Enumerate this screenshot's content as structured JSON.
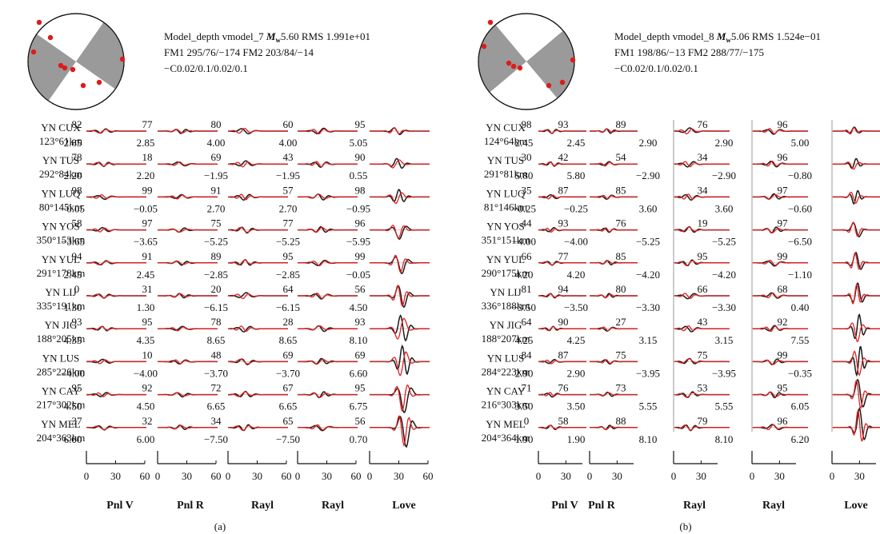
{
  "chart_data": [
    {
      "panel_label": "(a)",
      "type": "line",
      "header": {
        "line1": "Model_depth vmodel_7",
        "mag_symbol": "M",
        "mag_sub": "w",
        "line1b": "5.60 RMS 1.991e+01",
        "line2": "FM1 295/76/−174  FM2 203/84/−14",
        "line3": "−C0.02/0.1/0.02/0.1"
      },
      "components": [
        "Pnl V",
        "Pnl R",
        "Rayl",
        "Rayl",
        "Love"
      ],
      "x_ticks": [
        [
          "0",
          "30",
          "60"
        ],
        [
          "0",
          "30",
          "60"
        ],
        [
          "0",
          "30",
          "60"
        ],
        [
          "0",
          "30",
          "60"
        ],
        [
          "0",
          "30",
          "60"
        ]
      ],
      "stations": [
        {
          "name": "YN CUX",
          "dist": "123°61km",
          "cc": [
            "82",
            "77",
            "80",
            "60",
            "95"
          ],
          "shift": [
            "2.85",
            "2.85",
            "4.00",
            "4.00",
            "5.05"
          ]
        },
        {
          "name": "YN TUS",
          "dist": "292°84km",
          "cc": [
            "78",
            "18",
            "69",
            "43",
            "90"
          ],
          "shift": [
            "2.20",
            "2.20",
            "−1.95",
            "−1.95",
            "0.55"
          ]
        },
        {
          "name": "YN LUQ",
          "dist": "80°145km",
          "cc": [
            "98",
            "99",
            "91",
            "57",
            "98"
          ],
          "shift": [
            "−0.05",
            "−0.05",
            "2.70",
            "2.70",
            "−0.95"
          ]
        },
        {
          "name": "YN YOS",
          "dist": "350°153km",
          "cc": [
            "58",
            "97",
            "75",
            "77",
            "96"
          ],
          "shift": [
            "−3.65",
            "−3.65",
            "−5.25",
            "−5.25",
            "−5.95"
          ]
        },
        {
          "name": "YN YUL",
          "dist": "291°178km",
          "cc": [
            "94",
            "91",
            "89",
            "95",
            "99"
          ],
          "shift": [
            "2.45",
            "2.45",
            "−2.85",
            "−2.85",
            "−0.05"
          ]
        },
        {
          "name": "YN LIJ",
          "dist": "335°191km",
          "cc": [
            "0",
            "31",
            "20",
            "64",
            "56"
          ],
          "shift": [
            "1.30",
            "1.30",
            "−6.15",
            "−6.15",
            "4.50"
          ]
        },
        {
          "name": "YN JIG",
          "dist": "188°205km",
          "cc": [
            "93",
            "95",
            "78",
            "28",
            "93"
          ],
          "shift": [
            "4.35",
            "4.35",
            "8.65",
            "8.65",
            "8.10"
          ]
        },
        {
          "name": "YN LUS",
          "dist": "285°226km",
          "cc": [
            "",
            "10",
            "48",
            "69",
            "69"
          ],
          "shift": [
            "−4.00",
            "−4.00",
            "−3.70",
            "−3.70",
            "6.60"
          ]
        },
        {
          "name": "YN CAY",
          "dist": "217°302km",
          "cc": [
            "95",
            "92",
            "72",
            "67",
            "95"
          ],
          "shift": [
            "4.50",
            "4.50",
            "6.65",
            "6.65",
            "6.75"
          ]
        },
        {
          "name": "YN MEL",
          "dist": "204°363km",
          "cc": [
            "37",
            "32",
            "34",
            "65",
            "56"
          ],
          "shift": [
            "6.00",
            "6.00",
            "−7.50",
            "−7.50",
            "0.70"
          ]
        }
      ]
    },
    {
      "panel_label": "(b)",
      "type": "line",
      "header": {
        "line1": "Model_depth vmodel_8",
        "mag_symbol": "M",
        "mag_sub": "w",
        "line1b": "5.06 RMS 1.524e−01",
        "line2": "FM1 198/86/−13  FM2 288/77/−175",
        "line3": "−C0.02/0.1/0.02/0.1"
      },
      "components": [
        "Pnl V",
        "Pnl R",
        "Rayl",
        "Rayl",
        "Love"
      ],
      "x_ticks": [
        [
          "0",
          "30"
        ],
        [
          "0",
          "30"
        ],
        [
          "0",
          "30"
        ],
        [
          "0",
          "30"
        ],
        [
          "0",
          "30"
        ]
      ],
      "stations": [
        {
          "name": "YN CUX",
          "dist": "124°64km",
          "cc": [
            "98",
            "93",
            "89",
            "76",
            "96"
          ],
          "shift": [
            "2.45",
            "2.45",
            "2.90",
            "2.90",
            "5.00"
          ]
        },
        {
          "name": "YN TUS",
          "dist": "291°81km",
          "cc": [
            "30",
            "42",
            "54",
            "34",
            "96"
          ],
          "shift": [
            "5.80",
            "5.80",
            "−2.90",
            "−2.90",
            "−0.80"
          ]
        },
        {
          "name": "YN LUQ",
          "dist": "81°146km",
          "cc": [
            "35",
            "87",
            "85",
            "34",
            "97"
          ],
          "shift": [
            "−0.25",
            "−0.25",
            "3.60",
            "3.60",
            "−0.60"
          ]
        },
        {
          "name": "YN YOS",
          "dist": "351°151km",
          "cc": [
            "44",
            "93",
            "76",
            "19",
            "97"
          ],
          "shift": [
            "−4.00",
            "−4.00",
            "−5.25",
            "−5.25",
            "−6.50"
          ]
        },
        {
          "name": "YN YUL",
          "dist": "290°175km",
          "cc": [
            "66",
            "77",
            "85",
            "95",
            "99"
          ],
          "shift": [
            "4.20",
            "4.20",
            "−4.20",
            "−4.20",
            "−1.10"
          ]
        },
        {
          "name": "YN LIJ",
          "dist": "336°188km",
          "cc": [
            "81",
            "94",
            "80",
            "66",
            "68"
          ],
          "shift": [
            "−3.50",
            "−3.50",
            "−3.30",
            "−3.30",
            "0.40"
          ]
        },
        {
          "name": "YN JIG",
          "dist": "188°207km",
          "cc": [
            "64",
            "90",
            "27",
            "43",
            "92"
          ],
          "shift": [
            "4.25",
            "4.25",
            "3.15",
            "3.15",
            "7.55"
          ]
        },
        {
          "name": "YN LUS",
          "dist": "284°223km",
          "cc": [
            "84",
            "87",
            "75",
            "75",
            "99"
          ],
          "shift": [
            "2.90",
            "2.90",
            "−3.95",
            "−3.95",
            "−0.35"
          ]
        },
        {
          "name": "YN CAY",
          "dist": "216°303km",
          "cc": [
            "71",
            "76",
            "73",
            "53",
            "95"
          ],
          "shift": [
            "3.50",
            "3.50",
            "5.55",
            "5.55",
            "6.05"
          ]
        },
        {
          "name": "YN MEL",
          "dist": "204°364km",
          "cc": [
            "0",
            "58",
            "88",
            "79",
            "96"
          ],
          "shift": [
            "1.90",
            "1.90",
            "8.10",
            "8.10",
            "6.20"
          ]
        }
      ]
    }
  ],
  "colors": {
    "observed": "#1a1a1a",
    "synthetic": "#e32222",
    "beachball_fill": "#9a9a9a",
    "station_marker": "#e01a1a"
  }
}
